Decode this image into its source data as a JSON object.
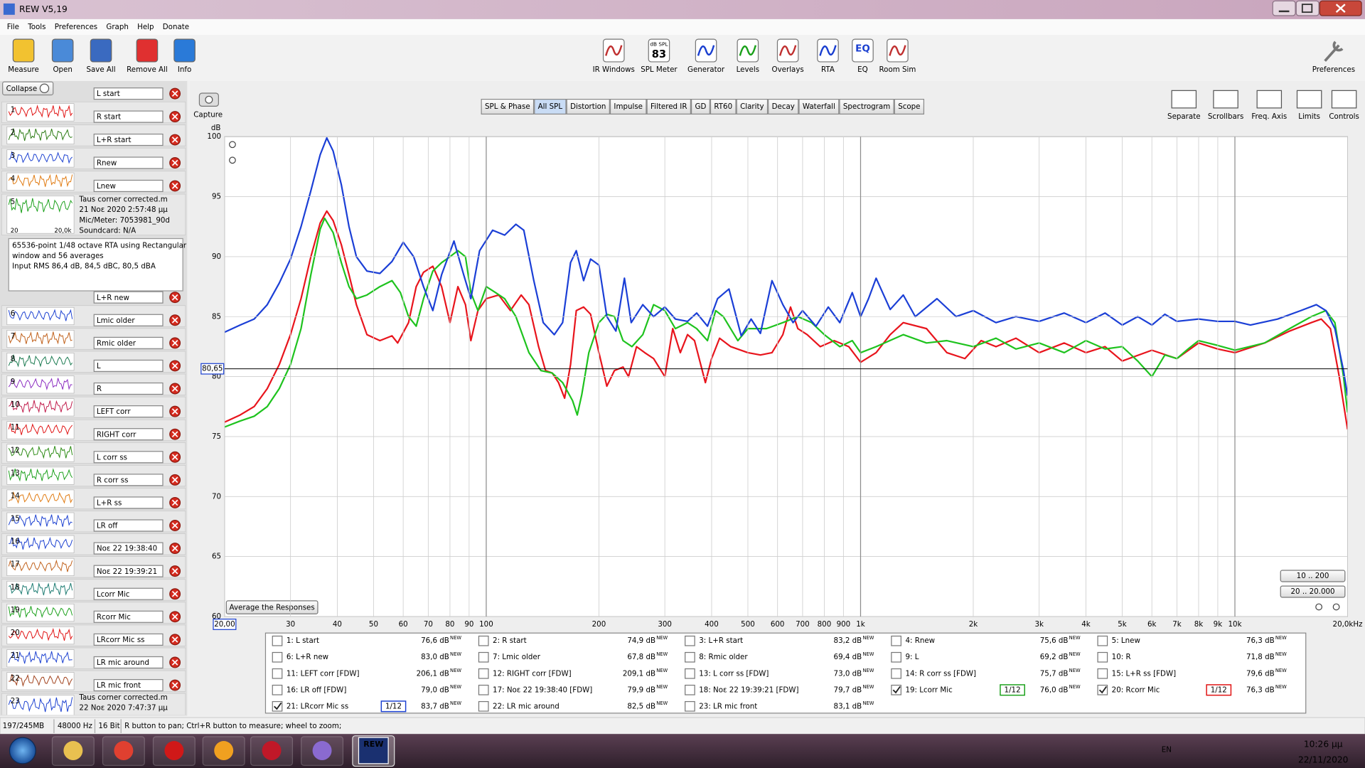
{
  "window": {
    "title": "REW V5,19",
    "menu": [
      "File",
      "Tools",
      "Preferences",
      "Graph",
      "Help",
      "Donate"
    ]
  },
  "toolbar": {
    "left": [
      "Measure",
      "Open",
      "Save All",
      "Remove All",
      "Info"
    ],
    "center": [
      "IR Windows",
      "SPL Meter",
      "Generator",
      "Levels",
      "Overlays",
      "RTA",
      "EQ",
      "Room Sim"
    ],
    "spl_icon": {
      "caption": "dB SPL",
      "reading": 83
    },
    "eq_icon": "EQ",
    "right": "Preferences"
  },
  "measurements": {
    "collapse": "Collapse",
    "items": [
      {
        "number": 1,
        "name": "L start"
      },
      {
        "number": 2,
        "name": "R start"
      },
      {
        "number": 3,
        "name": "L+R start"
      },
      {
        "number": 4,
        "name": "Rnew"
      },
      {
        "number": 5,
        "name": "Lnew"
      },
      {
        "number": 6,
        "name": "L+R new"
      },
      {
        "number": 7,
        "name": "Lmic older"
      },
      {
        "number": 8,
        "name": "Rmic older"
      },
      {
        "number": 9,
        "name": "L"
      },
      {
        "number": 10,
        "name": "R"
      },
      {
        "number": 11,
        "name": "LEFT corr"
      },
      {
        "number": 12,
        "name": "RIGHT corr"
      },
      {
        "number": 13,
        "name": "L corr ss",
        "color": "#1a3fd0"
      },
      {
        "number": 14,
        "name": "R corr ss",
        "color": "#1a3fd0"
      },
      {
        "number": 15,
        "name": "L+R ss",
        "color": "#1a3fd0"
      },
      {
        "number": 16,
        "name": "LR off"
      },
      {
        "number": 17,
        "name": "Νοε 22 19:38:40"
      },
      {
        "number": 18,
        "name": "Νοε 22 19:39:21"
      },
      {
        "number": 19,
        "name": "Lcorr Mic"
      },
      {
        "number": 20,
        "name": "Rcorr Mic"
      },
      {
        "number": 21,
        "name": "LRcorr Mic ss"
      },
      {
        "number": 22,
        "name": "LR mic around"
      },
      {
        "number": 23,
        "name": "LR mic front"
      }
    ],
    "expanded": {
      "file": "Taus corner corrected.m",
      "date": "21 Νοε 2020 2:57:48 μμ",
      "mic": "Mic/Meter: 7053981_90d",
      "soundcard": "Soundcard: N/A",
      "axis_start": 20,
      "axis_end": "20,0k",
      "notes": [
        "65536-point 1/48 octave RTA using Rectangular",
        "window and 56 averages",
        "Input RMS 86,4 dB, 84,5 dBC, 80,5 dBA"
      ]
    },
    "last": {
      "file": "Taus corner corrected.m",
      "date": "22 Νοε 2020 7:47:37 μμ"
    }
  },
  "graph": {
    "capture": "Capture",
    "tabs": [
      "SPL & Phase",
      "All SPL",
      "Distortion",
      "Impulse",
      "Filtered IR",
      "GD",
      "RT60",
      "Clarity",
      "Decay",
      "Waterfall",
      "Spectrogram",
      "Scope"
    ],
    "active_tab": 1,
    "controls": [
      "Separate",
      "Scrollbars",
      "Freq. Axis",
      "Limits",
      "Controls"
    ],
    "range_buttons": [
      "10 .. 200",
      "20 .. 20.000"
    ],
    "average": "Average the Responses"
  },
  "chart_data": {
    "type": "line",
    "y_label": "dB",
    "xscale": "log",
    "grid": true,
    "xlim": [
      20,
      20000
    ],
    "ylim": [
      60,
      100
    ],
    "xticks": [
      {
        "value": 20,
        "label": "20,00"
      },
      30,
      40,
      50,
      60,
      70,
      80,
      90,
      100,
      200,
      300,
      400,
      500,
      600,
      700,
      800,
      900,
      {
        "value": 1000,
        "label": "1k"
      },
      {
        "value": 2000,
        "label": "2k"
      },
      {
        "value": 3000,
        "label": "3k"
      },
      {
        "value": 4000,
        "label": "4k"
      },
      {
        "value": 5000,
        "label": "5k"
      },
      {
        "value": 6000,
        "label": "6k"
      },
      {
        "value": 7000,
        "label": "7k"
      },
      {
        "value": 8000,
        "label": "8k"
      },
      {
        "value": 9000,
        "label": "9k"
      },
      {
        "value": 10000,
        "label": "10k"
      },
      {
        "value": 20000,
        "label": "20,0kHz"
      }
    ],
    "yticks": [
      60,
      65,
      70,
      75,
      80,
      85,
      90,
      95,
      100
    ],
    "reference": {
      "value": 80.65,
      "label": "80,65"
    },
    "series": [
      {
        "color": "#e8141c",
        "x": [
          20,
          22,
          24,
          26,
          28,
          30,
          32,
          34,
          36,
          37.5,
          39,
          41,
          43,
          45,
          48,
          52,
          56,
          58,
          62,
          65,
          68,
          72,
          76,
          80,
          84,
          88,
          91,
          95,
          100,
          108,
          116,
          124,
          130,
          138,
          144,
          150,
          156,
          162,
          168,
          174,
          182,
          190,
          200,
          210,
          220,
          232,
          240,
          252,
          265,
          280,
          300,
          315,
          330,
          345,
          360,
          385,
          400,
          420,
          450,
          500,
          540,
          580,
          620,
          650,
          680,
          720,
          780,
          850,
          930,
          1000,
          1100,
          1200,
          1300,
          1500,
          1700,
          1900,
          2100,
          2300,
          2600,
          3000,
          3500,
          4000,
          4500,
          5000,
          6000,
          7000,
          8000,
          9000,
          10000,
          12000,
          14000,
          16000,
          17000,
          18000,
          19000,
          20000
        ],
        "values": [
          76.2,
          76.8,
          77.5,
          79,
          81,
          83.5,
          86.5,
          90,
          92.8,
          93.8,
          93,
          91,
          88.5,
          86,
          83.5,
          83,
          83.4,
          82.8,
          84.5,
          87.5,
          88.7,
          89.2,
          87.5,
          84.5,
          87.5,
          86,
          83,
          85.5,
          86.5,
          86.8,
          85.5,
          86.8,
          86,
          82.5,
          80.5,
          80.3,
          79.5,
          78.2,
          81,
          85.5,
          85.8,
          85.2,
          82,
          79.2,
          80.5,
          80.8,
          80,
          82.5,
          82,
          81.5,
          80,
          84,
          82,
          83.5,
          83,
          79.5,
          81.5,
          83.2,
          82.5,
          82,
          81.8,
          82,
          83.5,
          85.8,
          84,
          83.5,
          82.5,
          83,
          82.5,
          81.2,
          82,
          83.5,
          84.5,
          84,
          82,
          81.5,
          83,
          82.5,
          83.2,
          82,
          82.8,
          82,
          82.5,
          81.3,
          82.2,
          81.5,
          82.8,
          82.3,
          82,
          82.8,
          83.8,
          84.5,
          84.8,
          84,
          80,
          75.6
        ]
      },
      {
        "color": "#1ec31e",
        "x": [
          20,
          22,
          24,
          26,
          28,
          30,
          32,
          34,
          36,
          37,
          39,
          41,
          43,
          45,
          48,
          52,
          56,
          59,
          62,
          65,
          68,
          72,
          76,
          80,
          84,
          88,
          91,
          95,
          100,
          106,
          112,
          120,
          130,
          140,
          150,
          160,
          170,
          175,
          180,
          188,
          200,
          210,
          220,
          232,
          245,
          262,
          280,
          300,
          320,
          345,
          365,
          390,
          410,
          430,
          470,
          500,
          560,
          620,
          680,
          740,
          800,
          880,
          950,
          1000,
          1100,
          1300,
          1500,
          1700,
          2000,
          2300,
          2600,
          3000,
          3500,
          4000,
          4500,
          5000,
          5500,
          6000,
          6500,
          7000,
          7500,
          8000,
          9000,
          10000,
          12000,
          14000,
          16000,
          17500,
          18500,
          19500,
          20000
        ],
        "values": [
          75.8,
          76.3,
          76.7,
          77.5,
          79,
          81,
          84,
          88.5,
          92.3,
          93.2,
          92,
          89.5,
          87.5,
          86.5,
          86.8,
          87.5,
          88,
          87,
          85,
          84.2,
          86.5,
          88.8,
          89.5,
          90,
          90.5,
          90,
          87,
          85.5,
          87.5,
          87,
          86.5,
          85,
          82,
          80.5,
          80.3,
          79.5,
          78,
          76.8,
          78.5,
          82,
          84.5,
          85.2,
          85,
          83,
          82.5,
          83.5,
          86,
          85.5,
          84,
          84.5,
          84,
          83,
          85.5,
          85,
          83,
          84,
          84,
          84.5,
          85,
          84.5,
          83.5,
          82.5,
          83,
          82,
          82.5,
          83.5,
          82.8,
          83,
          82.5,
          83.2,
          82.3,
          82.8,
          82,
          83,
          82.3,
          82.5,
          81.3,
          80,
          81.8,
          81.5,
          82.3,
          83,
          82.6,
          82.2,
          82.8,
          84,
          85,
          85.5,
          84.5,
          80,
          77
        ]
      },
      {
        "color": "#1b3fd6",
        "x": [
          20,
          22,
          24,
          26,
          28,
          30,
          32,
          34,
          36,
          37.5,
          39,
          41,
          43,
          45,
          48,
          52,
          56,
          60,
          64,
          68,
          72,
          76,
          82,
          87,
          91,
          96,
          104,
          112,
          120,
          126,
          134,
          142,
          152,
          160,
          168,
          174,
          182,
          190,
          200,
          210,
          222,
          234,
          244,
          262,
          280,
          300,
          320,
          345,
          365,
          390,
          415,
          445,
          480,
          510,
          540,
          580,
          620,
          660,
          700,
          760,
          820,
          880,
          950,
          1000,
          1050,
          1100,
          1200,
          1300,
          1400,
          1600,
          1800,
          2000,
          2300,
          2600,
          3000,
          3500,
          4000,
          4500,
          5000,
          5500,
          6000,
          6500,
          7000,
          8000,
          9000,
          10000,
          11000,
          13000,
          15000,
          16500,
          17500,
          18500,
          19500,
          20000
        ],
        "values": [
          83.7,
          84.3,
          84.8,
          86,
          87.8,
          89.8,
          92.5,
          95.5,
          98.5,
          99.9,
          98.8,
          96,
          92.5,
          90,
          88.8,
          88.6,
          89.6,
          91.2,
          90,
          87.5,
          85.5,
          88.5,
          91.3,
          88.5,
          86.5,
          90.5,
          92.2,
          91.8,
          92.7,
          92.2,
          88,
          84.5,
          83.5,
          84.5,
          89.5,
          90.5,
          88,
          89.8,
          89.3,
          85,
          83.8,
          88.2,
          84.5,
          86,
          85,
          85.8,
          84.8,
          84.6,
          85.3,
          84.2,
          86.5,
          87.3,
          83.4,
          84.8,
          83.6,
          88,
          86,
          84.5,
          85.5,
          84.2,
          85.8,
          84.5,
          87,
          85,
          86.5,
          88.2,
          85.6,
          86.8,
          85,
          86.5,
          85,
          85.5,
          84.5,
          85,
          84.6,
          85.3,
          84.5,
          85.3,
          84.3,
          85,
          84.3,
          85.2,
          84.6,
          84.8,
          84.6,
          84.6,
          84.3,
          84.8,
          85.5,
          86,
          85.5,
          84,
          80.5,
          78.4
        ]
      }
    ]
  },
  "legend": {
    "tag": "NEW",
    "items": [
      {
        "label": "1: L start",
        "reading": "76,6 dB",
        "color": "#e01010"
      },
      {
        "label": "2: R start",
        "reading": "74,9 dB",
        "color": "#2a7a12"
      },
      {
        "label": "3: L+R start",
        "reading": "83,2 dB",
        "color": "#1a3fd0"
      },
      {
        "label": "4: Rnew",
        "reading": "75,6 dB",
        "color": "#e07a10"
      },
      {
        "label": "5: Lnew",
        "reading": "76,3 dB",
        "color": "#1aa01a"
      },
      {
        "label": "6: L+R new",
        "reading": "83,0 dB",
        "color": "#1a3fd0"
      },
      {
        "label": "7: Lmic older",
        "reading": "67,8 dB",
        "color": "#c0601a"
      },
      {
        "label": "8: Rmic older",
        "reading": "69,4 dB",
        "color": "#1a7a50"
      },
      {
        "label": "9: L",
        "reading": "69,2 dB",
        "color": "#8a2ac0"
      },
      {
        "label": "10: R",
        "reading": "71,8 dB",
        "color": "#c01a4a"
      },
      {
        "label": "11: LEFT corr [FDW]",
        "reading": "206,1 dB",
        "color": "#e01010"
      },
      {
        "label": "12: RIGHT corr [FDW]",
        "reading": "209,1 dB",
        "color": "#2a8a12"
      },
      {
        "label": "13: L corr ss [FDW]",
        "reading": "73,0 dB",
        "color": "#1aa01a"
      },
      {
        "label": "14: R corr ss [FDW]",
        "reading": "75,7 dB",
        "color": "#e07a10"
      },
      {
        "label": "15: L+R ss [FDW]",
        "reading": "79,6 dB",
        "color": "#1a3fd0"
      },
      {
        "label": "16: LR off [FDW]",
        "reading": "79,0 dB",
        "color": "#1a3fd0"
      },
      {
        "label": "17: Νοε 22 19:38:40 [FDW]",
        "reading": "79,9 dB",
        "color": "#c0601a"
      },
      {
        "label": "18: Νοε 22 19:39:21 [FDW]",
        "reading": "79,7 dB",
        "color": "#1a7a70"
      },
      {
        "label": "19: Lcorr Mic",
        "reading": "76,0 dB",
        "color": "#1aa01a",
        "checked": true,
        "smoothing": "1/12"
      },
      {
        "label": "20: Rcorr Mic",
        "reading": "76,3 dB",
        "color": "#e01010",
        "checked": true,
        "smoothing": "1/12"
      },
      {
        "label": "21: LRcorr Mic ss",
        "reading": "83,7 dB",
        "color": "#1a3fd0",
        "checked": true,
        "smoothing": "1/12"
      },
      {
        "label": "22: LR mic around",
        "reading": "82,5 dB",
        "color": "#a0401a"
      },
      {
        "label": "23: LR mic front",
        "reading": "83,1 dB",
        "color": "#1a3fd0"
      }
    ]
  },
  "status": [
    "197/245MB",
    "48000 Hz",
    "16 Bit",
    "R button to pan; Ctrl+R button to measure; wheel to zoom;"
  ],
  "taskbar": {
    "rew_icon": "REW",
    "language": "EN",
    "time": "10:26 μμ",
    "date": "22/11/2020"
  }
}
